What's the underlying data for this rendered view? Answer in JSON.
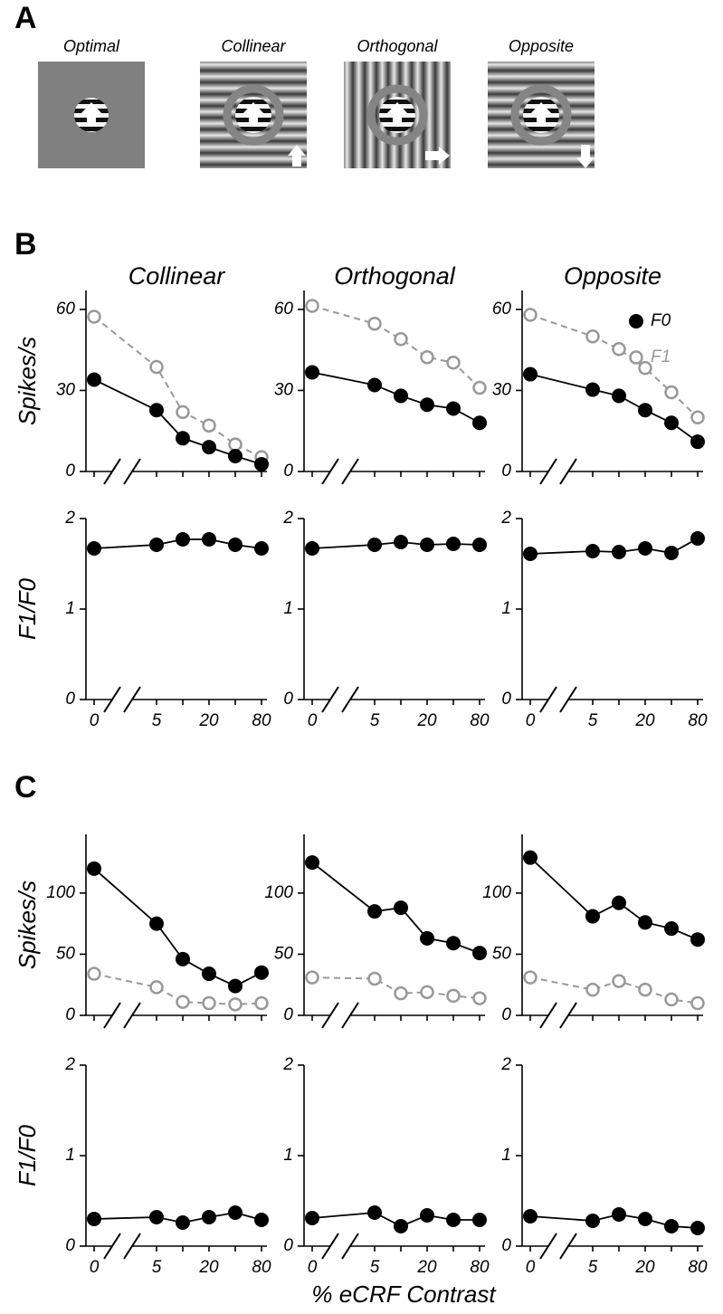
{
  "panel_labels": [
    "A",
    "B",
    "C"
  ],
  "stimuli": [
    "Optimal",
    "Collinear",
    "Orthogonal",
    "Opposite"
  ],
  "chart_data": [
    {
      "type": "line",
      "title": "Collinear",
      "ylabel": "Spikes/s",
      "ylim": [
        0,
        67
      ],
      "yticks": [
        0,
        30,
        60
      ],
      "series": [
        {
          "color": "#000000",
          "marker": "filled",
          "dashed": false,
          "values": [
            34,
            22.7,
            12.3,
            9,
            5.7,
            2.7
          ]
        },
        {
          "color": "#999999",
          "marker": "open",
          "dashed": true,
          "values": [
            57.3,
            38.7,
            22,
            17,
            10,
            5.3
          ]
        }
      ]
    },
    {
      "type": "line",
      "title": "Orthogonal",
      "ylim": [
        0,
        67
      ],
      "yticks": [
        0,
        30,
        60
      ],
      "series": [
        {
          "color": "#000000",
          "marker": "filled",
          "dashed": false,
          "values": [
            36.7,
            32,
            28,
            24.7,
            23.3,
            18
          ]
        },
        {
          "color": "#999999",
          "marker": "open",
          "dashed": true,
          "values": [
            61.3,
            54.7,
            49,
            42.3,
            40.3,
            31
          ]
        }
      ]
    },
    {
      "type": "line",
      "title": "Opposite",
      "ylim": [
        0,
        67
      ],
      "yticks": [
        0,
        30,
        60
      ],
      "legend": "upper right",
      "series": [
        {
          "name": "F0",
          "color": "#000000",
          "marker": "filled",
          "dashed": false,
          "values": [
            36,
            30.3,
            28,
            22.7,
            18,
            11
          ]
        },
        {
          "name": "F1",
          "color": "#999999",
          "marker": "open",
          "dashed": true,
          "values": [
            58,
            50,
            45.3,
            38.3,
            29.3,
            20
          ]
        }
      ]
    },
    {
      "type": "line",
      "ylabel": "F1/F0",
      "categories": [
        "0",
        "5",
        null,
        "20",
        null,
        "80"
      ],
      "ylim": [
        0,
        2
      ],
      "yticks": [
        0,
        1,
        2
      ],
      "series": [
        {
          "color": "#000000",
          "marker": "filled",
          "dashed": false,
          "values": [
            1.67,
            1.71,
            1.77,
            1.77,
            1.71,
            1.67
          ]
        }
      ]
    },
    {
      "type": "line",
      "categories": [
        "0",
        "5",
        null,
        "20",
        null,
        "80"
      ],
      "ylim": [
        0,
        2
      ],
      "yticks": [
        0,
        1,
        2
      ],
      "series": [
        {
          "color": "#000000",
          "marker": "filled",
          "dashed": false,
          "values": [
            1.67,
            1.71,
            1.74,
            1.71,
            1.72,
            1.71
          ]
        }
      ]
    },
    {
      "type": "line",
      "categories": [
        "0",
        "5",
        null,
        "20",
        null,
        "80"
      ],
      "ylim": [
        0,
        2
      ],
      "yticks": [
        0,
        1,
        2
      ],
      "series": [
        {
          "color": "#000000",
          "marker": "filled",
          "dashed": false,
          "values": [
            1.61,
            1.64,
            1.63,
            1.67,
            1.62,
            1.78
          ]
        }
      ]
    },
    {
      "type": "line",
      "ylabel": "Spikes/s",
      "ylim": [
        0,
        148
      ],
      "yticks": [
        0,
        50,
        100
      ],
      "series": [
        {
          "color": "#000000",
          "marker": "filled",
          "dashed": false,
          "values": [
            120,
            75,
            46,
            34,
            24,
            35
          ]
        },
        {
          "color": "#999999",
          "marker": "open",
          "dashed": true,
          "values": [
            34,
            23,
            11,
            10,
            9,
            10
          ]
        }
      ]
    },
    {
      "type": "line",
      "ylim": [
        0,
        148
      ],
      "yticks": [
        0,
        50,
        100
      ],
      "series": [
        {
          "color": "#000000",
          "marker": "filled",
          "dashed": false,
          "values": [
            125,
            85,
            88,
            63,
            59,
            51
          ]
        },
        {
          "color": "#999999",
          "marker": "open",
          "dashed": true,
          "values": [
            31,
            30,
            18,
            19,
            16,
            14
          ]
        }
      ]
    },
    {
      "type": "line",
      "ylim": [
        0,
        148
      ],
      "yticks": [
        0,
        50,
        100
      ],
      "series": [
        {
          "color": "#000000",
          "marker": "filled",
          "dashed": false,
          "values": [
            129,
            81,
            92,
            76,
            71,
            62
          ]
        },
        {
          "color": "#999999",
          "marker": "open",
          "dashed": true,
          "values": [
            31,
            21,
            28,
            21,
            13,
            10
          ]
        }
      ]
    },
    {
      "type": "line",
      "ylabel": "F1/F0",
      "categories": [
        "0",
        "5",
        null,
        "20",
        null,
        "80"
      ],
      "ylim": [
        0,
        2
      ],
      "yticks": [
        0,
        1,
        2
      ],
      "series": [
        {
          "color": "#000000",
          "marker": "filled",
          "dashed": false,
          "values": [
            0.3,
            0.32,
            0.26,
            0.32,
            0.37,
            0.29
          ]
        }
      ]
    },
    {
      "type": "line",
      "xlabel": "% eCRF Contrast",
      "categories": [
        "0",
        "5",
        null,
        "20",
        null,
        "80"
      ],
      "ylim": [
        0,
        2
      ],
      "yticks": [
        0,
        1,
        2
      ],
      "series": [
        {
          "color": "#000000",
          "marker": "filled",
          "dashed": false,
          "values": [
            0.31,
            0.37,
            0.22,
            0.34,
            0.29,
            0.29
          ]
        }
      ]
    },
    {
      "type": "line",
      "categories": [
        "0",
        "5",
        null,
        "20",
        null,
        "80"
      ],
      "ylim": [
        0,
        2
      ],
      "yticks": [
        0,
        1,
        2
      ],
      "series": [
        {
          "color": "#000000",
          "marker": "filled",
          "dashed": false,
          "values": [
            0.33,
            0.28,
            0.35,
            0.3,
            0.22,
            0.2
          ]
        }
      ]
    }
  ]
}
